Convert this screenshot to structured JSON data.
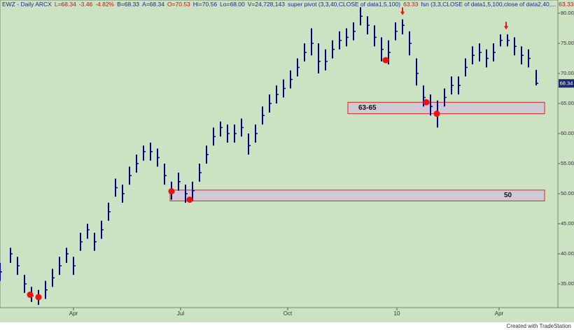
{
  "chart_data": {
    "type": "ohlc",
    "header": [
      {
        "text": "EWZ - Daily  ARCX",
        "color": "#1a2a9a"
      },
      {
        "text": "L=68.34",
        "color": "#d01010"
      },
      {
        "text": "-3.46",
        "color": "#d01010"
      },
      {
        "text": "-4.82%",
        "color": "#d01010"
      },
      {
        "text": "B=68.33",
        "color": "#1a2a9a"
      },
      {
        "text": "A=68.34",
        "color": "#1a2a9a"
      },
      {
        "text": "O=70.53",
        "color": "#d01010"
      },
      {
        "text": "Hi=70.56",
        "color": "#1a2a9a"
      },
      {
        "text": "Lo=68.00",
        "color": "#1a2a9a"
      },
      {
        "text": "V=24,728,143",
        "color": "#1a2a9a"
      },
      {
        "text": "super pivot (3,3,40,CLOSE of data1,5,100)",
        "color": "#1a2a9a"
      },
      {
        "text": "63.33",
        "color": "#d01010"
      },
      {
        "text": "fsn (3,3,CLOSE of data1,5,100,close of data2,40,...",
        "color": "#1a2a9a"
      },
      {
        "text": "63.33",
        "color": "#d01010"
      }
    ],
    "x": [
      0,
      1.5,
      2.5,
      3.5,
      4.5,
      5.5,
      6.5,
      7.5,
      8.5,
      9.5,
      10.5,
      11.5,
      12.5,
      13.5,
      14.5,
      15.5,
      16.5,
      17.5,
      18.5,
      19.5,
      20.5,
      21.5,
      22.5,
      23.5,
      24.5,
      25.5,
      26.5,
      27.5,
      28.5,
      29.5,
      30.5,
      31.5,
      32.5,
      33.5,
      34.5,
      35.5,
      36.5,
      37.5,
      38.5,
      39.5,
      40.5,
      41.5,
      42.5,
      43.5,
      44.5,
      45.5,
      46.5,
      47.5,
      48.5,
      49.5,
      50.5,
      51.5,
      52.5,
      53.5,
      54.5,
      55.5,
      56.5,
      57.5,
      58.5,
      59.5,
      60.5,
      61.5,
      62.5,
      63.5,
      64.5,
      65.5,
      66.5,
      67.5,
      68.5,
      69.5,
      70.5,
      71.5,
      72.5,
      73.5,
      74.5,
      75.5,
      76.6
    ],
    "series": [
      {
        "name": "High",
        "values": [
          38.5,
          41,
          39.5,
          36.5,
          34.5,
          34,
          35.5,
          37.5,
          39.5,
          41,
          39.5,
          43.5,
          45,
          43.5,
          45.5,
          48.5,
          52.5,
          51.5,
          54.5,
          56.5,
          58,
          58.5,
          57.5,
          55,
          52,
          53.5,
          51.5,
          52,
          55,
          58,
          61,
          62,
          61.5,
          61.5,
          62.5,
          60,
          61.5,
          64.5,
          66.5,
          68,
          69,
          70.5,
          72.5,
          75,
          77.5,
          75,
          74,
          75.5,
          77,
          77.5,
          78.5,
          81,
          79.5,
          78,
          76,
          75.5,
          78.5,
          79,
          77,
          72.5,
          68,
          66.5,
          65.5,
          67.5,
          69.5,
          69.5,
          72.5,
          74.5,
          75,
          74,
          75,
          76.5,
          76.5,
          76,
          74.5,
          74,
          70.6
        ]
      },
      {
        "name": "Low",
        "values": [
          35.5,
          38.5,
          36.5,
          33.5,
          32,
          31.5,
          32.5,
          34.5,
          36.5,
          38.5,
          36.5,
          40.5,
          42.5,
          40.5,
          42.5,
          45.5,
          49.5,
          48.5,
          51.5,
          53.5,
          55.5,
          55.5,
          54.5,
          51.5,
          49,
          50.5,
          48.5,
          48.8,
          52,
          55,
          58,
          59.5,
          58.5,
          58.5,
          59.5,
          56.5,
          58.5,
          61.5,
          63.5,
          65,
          66,
          67.5,
          69.5,
          72,
          73,
          70,
          70.5,
          72.5,
          74,
          74.5,
          75.5,
          78,
          76.5,
          74.5,
          72,
          71.5,
          75.5,
          76.5,
          73,
          68,
          64.5,
          63,
          61,
          64.5,
          66.5,
          66.5,
          69.5,
          71.5,
          72,
          71,
          72,
          74.5,
          74.5,
          73,
          71.5,
          71,
          68
        ]
      },
      {
        "name": "Close",
        "values": [
          37,
          40,
          38,
          35,
          33,
          32.5,
          34,
          36,
          38,
          40,
          38,
          42,
          44,
          42,
          44,
          47,
          51,
          50,
          53,
          55,
          57,
          57,
          56,
          53,
          50.5,
          52,
          50,
          50.5,
          53.5,
          56.5,
          59.5,
          61,
          60,
          60,
          61,
          58,
          60,
          63,
          65,
          66.5,
          67.5,
          69,
          71,
          73.5,
          75,
          72,
          72,
          74,
          75.5,
          76,
          77,
          79.5,
          78,
          76,
          74,
          73.5,
          77,
          78,
          75,
          70,
          66,
          64.5,
          63.5,
          66,
          68,
          68,
          71,
          73,
          73.5,
          72.5,
          73.5,
          75.5,
          75.5,
          74.5,
          73,
          72.5,
          68.34
        ]
      }
    ],
    "color": "#000080",
    "last_price": 68.34,
    "zones": [
      {
        "label": "63-65",
        "low": 63.3,
        "high": 65.2,
        "x0": 49.7,
        "x1": 77.8
      },
      {
        "label": "50",
        "low": 48.8,
        "high": 50.6,
        "x0": 24.3,
        "x1": 77.8
      }
    ],
    "markers": [
      {
        "x": 4.3,
        "y": 33.2
      },
      {
        "x": 5.5,
        "y": 32.8
      },
      {
        "x": 24.5,
        "y": 50.4
      },
      {
        "x": 27.1,
        "y": 49.0
      },
      {
        "x": 55.1,
        "y": 72.2
      },
      {
        "x": 60.9,
        "y": 65.2
      },
      {
        "x": 62.4,
        "y": 63.3
      }
    ],
    "arrows": [
      {
        "x": 57.5,
        "y": 79.7
      },
      {
        "x": 72.3,
        "y": 77.3
      }
    ],
    "xlim": [
      0,
      79.7
    ],
    "xticks": [
      {
        "value": 10.5,
        "label": "Apr"
      },
      {
        "value": 25.8,
        "label": "Jul"
      },
      {
        "value": 41.1,
        "label": "Oct"
      },
      {
        "value": 56.7,
        "label": "10"
      },
      {
        "value": 71.3,
        "label": "Apr"
      }
    ],
    "ylim": [
      31.05,
      81.63
    ],
    "yticks": [
      {
        "value": 80,
        "label": "80.00"
      },
      {
        "value": 75,
        "label": "75.00"
      },
      {
        "value": 70,
        "label": "70.00"
      },
      {
        "value": 65,
        "label": "65.00"
      },
      {
        "value": 60,
        "label": "60.00"
      },
      {
        "value": 55,
        "label": "55.00"
      },
      {
        "value": 50,
        "label": "50.00"
      },
      {
        "value": 45,
        "label": "45.00"
      },
      {
        "value": 40,
        "label": "40.00"
      },
      {
        "value": 35,
        "label": "35.00"
      }
    ],
    "footer": "Created with TradeStation"
  }
}
